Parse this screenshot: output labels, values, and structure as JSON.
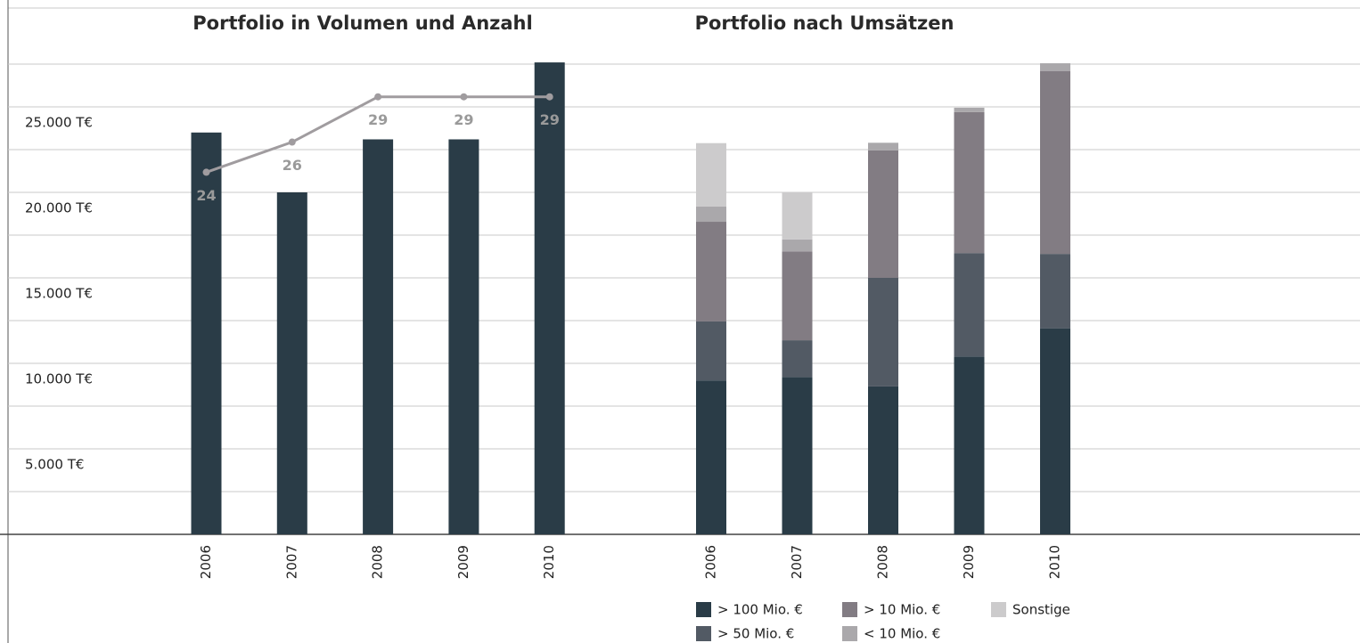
{
  "chart_data": [
    {
      "type": "bar_line",
      "title": "Portfolio in Volumen und Anzahl",
      "categories": [
        "2006",
        "2007",
        "2008",
        "2009",
        "2010"
      ],
      "series": [
        {
          "type": "bar",
          "color": "#2a3c47",
          "values": [
            23500,
            20000,
            23100,
            23100,
            27600
          ]
        },
        {
          "type": "line",
          "axis": "y2",
          "color": "#a09c9f",
          "label_color": "#9a9a9a",
          "values": [
            24,
            26,
            29,
            29,
            29
          ]
        }
      ],
      "ylim": [
        0,
        30000
      ],
      "yticks": [
        {
          "value": 5000,
          "label": "5.000 T€"
        },
        {
          "value": 10000,
          "label": "10.000 T€"
        },
        {
          "value": 15000,
          "label": "15.000 T€"
        },
        {
          "value": 20000,
          "label": "20.000 T€"
        },
        {
          "value": 25000,
          "label": "25.000 T€"
        }
      ],
      "ygrid": [
        2500,
        5000,
        7500,
        10000,
        12500,
        15000,
        17500,
        20000,
        22500,
        25000,
        27500
      ],
      "y2lim": [
        0,
        34
      ]
    },
    {
      "type": "stacked_bar",
      "title": "Portfolio nach Umsätzen",
      "categories": [
        "2006",
        "2007",
        "2008",
        "2009",
        "2010"
      ],
      "series": [
        {
          "name": "> 100 Mio. €",
          "color": "#2a3c47",
          "values": [
            9000,
            9200,
            8650,
            10400,
            12050
          ]
        },
        {
          "name": ">  50 Mio. €",
          "color": "#525a64",
          "values": [
            3450,
            2150,
            6350,
            6050,
            4350
          ]
        },
        {
          "name": "> 10 Mio. €",
          "color": "#827c83",
          "values": [
            5830,
            5200,
            7450,
            8250,
            10700
          ]
        },
        {
          "name": "< 10 Mio. €",
          "color": "#aaa8ab",
          "values": [
            900,
            700,
            450,
            250,
            450
          ]
        },
        {
          "name": "Sonstige",
          "color": "#cccbcc",
          "values": [
            3700,
            2750,
            0,
            0,
            0
          ]
        }
      ],
      "ylim": [
        0,
        30000
      ]
    }
  ]
}
